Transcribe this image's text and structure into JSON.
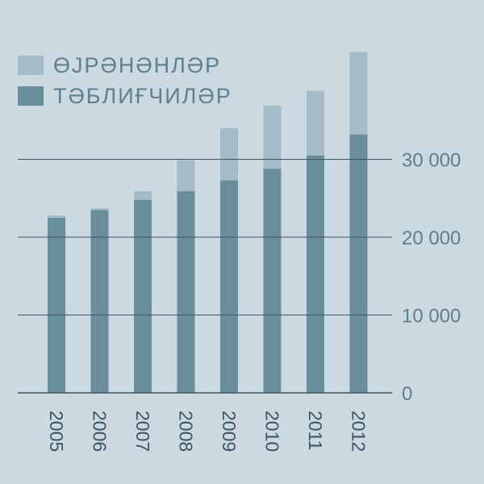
{
  "chart_data": {
    "type": "bar",
    "stacked": true,
    "categories": [
      "2005",
      "2006",
      "2007",
      "2008",
      "2009",
      "2010",
      "2011",
      "2012"
    ],
    "series": [
      {
        "name": "ТӘБЛИҒЧИЛӘР",
        "color": "#6a8d9c",
        "values": [
          22500,
          23500,
          24800,
          25900,
          27300,
          28800,
          30500,
          33200
        ]
      },
      {
        "name": "ӨЈРӘНӘНЛӘР",
        "color": "#a3bcc8",
        "values": [
          300,
          200,
          1100,
          4000,
          6700,
          8100,
          8300,
          10600
        ]
      }
    ],
    "y_ticks": [
      0,
      10000,
      20000,
      30000
    ],
    "y_tick_labels": [
      "0",
      "10 000",
      "20 000",
      "30 000"
    ],
    "ylim": [
      0,
      43000
    ],
    "grid": true,
    "legend_position": "top-left"
  },
  "colors": {
    "background": "#cbd9e0",
    "axis": "#3f5660",
    "text": "#5e7f8e"
  }
}
